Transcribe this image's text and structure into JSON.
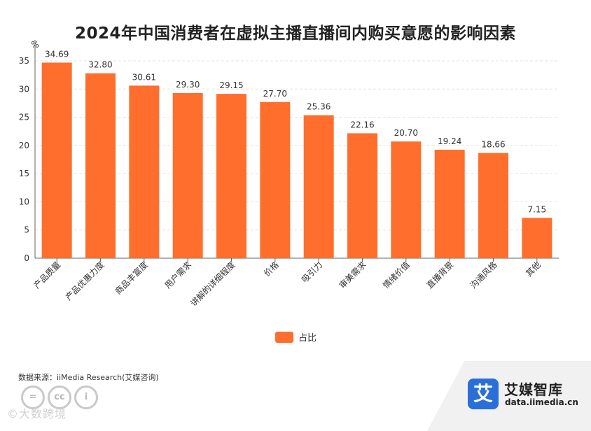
{
  "chart_data": {
    "type": "bar",
    "title": "2024年中国消费者在虚拟主播直播间内购买意愿的影响因素",
    "ylabel": "%",
    "xlabel": "",
    "ylim": [
      0,
      35
    ],
    "yticks": [
      0,
      5,
      10,
      15,
      20,
      25,
      30,
      35
    ],
    "grid": true,
    "categories": [
      "产品质量",
      "产品优惠力度",
      "商品丰富度",
      "用户需求",
      "讲解的详细程度",
      "价格",
      "吸引力",
      "审美需求",
      "情绪价值",
      "直播背景",
      "沟通风格",
      "其他"
    ],
    "series": [
      {
        "name": "占比",
        "color": "#ff6e2d",
        "values": [
          34.69,
          32.8,
          30.61,
          29.3,
          29.15,
          27.7,
          25.36,
          22.16,
          20.7,
          19.24,
          18.66,
          7.15
        ],
        "labels": [
          "34.69",
          "32.80",
          "30.61",
          "29.30",
          "29.15",
          "27.70",
          "25.36",
          "22.16",
          "20.70",
          "19.24",
          "18.66",
          "7.15"
        ]
      }
    ],
    "legend_position": "bottom-center"
  },
  "source_text": "数据来源：iiMedia Research(艾媒咨询)",
  "brand": {
    "logo_char": "艾",
    "name": "艾媒智库",
    "url": "data.iimedia.cn"
  },
  "license_badges": [
    "=",
    "cc",
    "i"
  ],
  "watermark_text": "©大数跨境"
}
